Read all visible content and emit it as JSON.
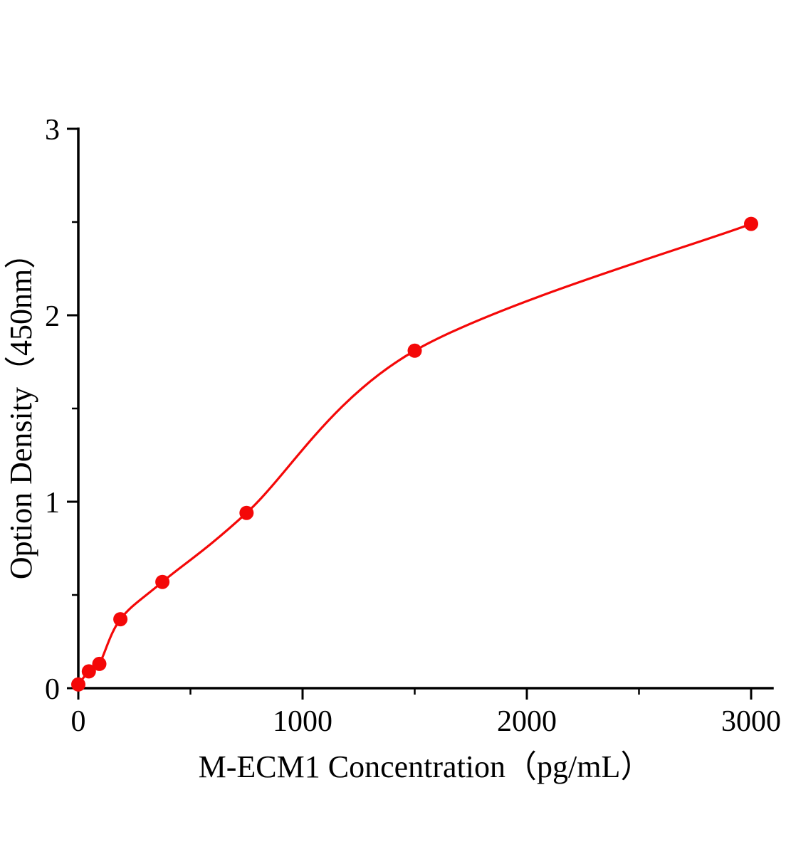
{
  "chart_data": {
    "type": "scatter",
    "title": "",
    "xlabel": "M-ECM1 Concentration（pg/mL）",
    "ylabel": "Option Density（450nm）",
    "x": [
      0,
      46.9,
      93.8,
      187.5,
      375,
      750,
      1500,
      3000
    ],
    "y": [
      0.02,
      0.09,
      0.13,
      0.37,
      0.57,
      0.94,
      1.81,
      2.49
    ],
    "xlim": [
      0,
      3100
    ],
    "ylim": [
      0,
      3
    ],
    "x_ticks": [
      0,
      1000,
      2000,
      3000
    ],
    "x_minor_ticks": [
      500,
      1500,
      2500
    ],
    "y_ticks": [
      0,
      1,
      2,
      3
    ],
    "y_minor_ticks": [
      0.5,
      1.5,
      2.5
    ],
    "grid": false,
    "legend": false,
    "fit_line": true,
    "marker_color": "#f40808",
    "line_color": "#f40808",
    "axis_color": "#000000"
  }
}
